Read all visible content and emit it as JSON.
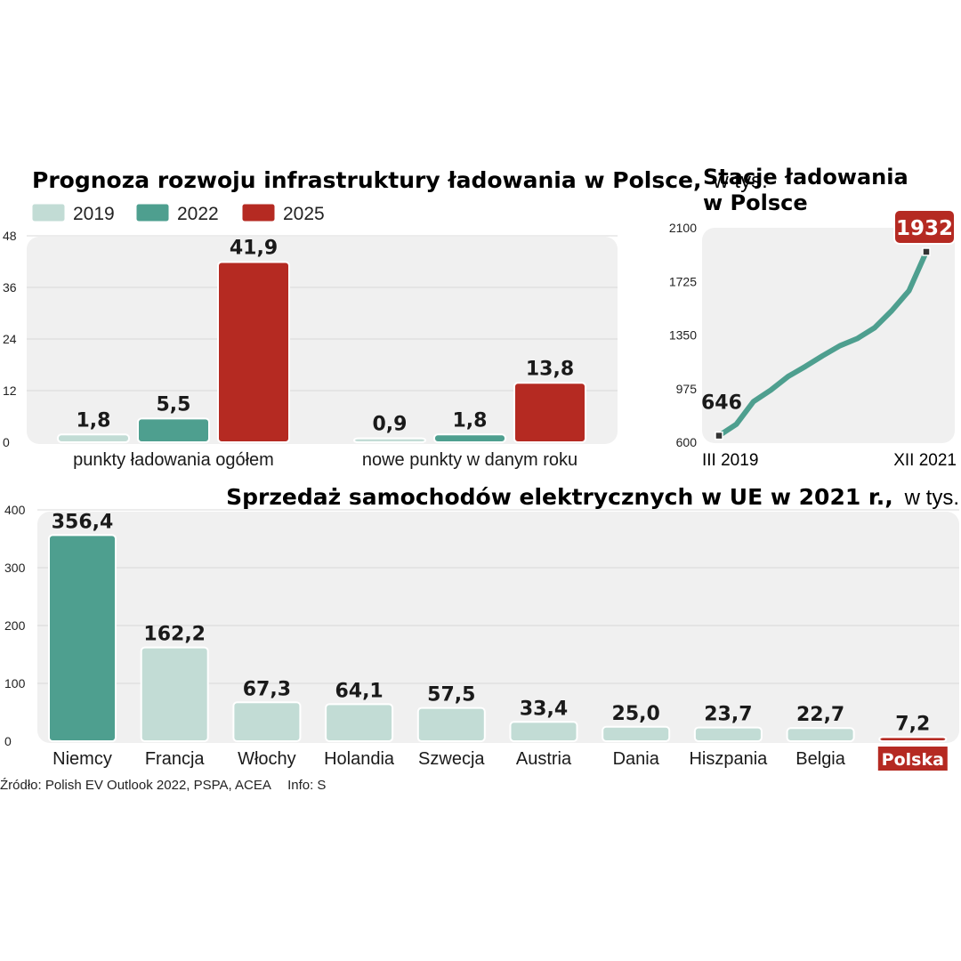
{
  "colors": {
    "y2019": "#c2dcd5",
    "y2022": "#4e9f8f",
    "y2025": "#b52a22",
    "panel": "#f0f0f0",
    "line": "#4e9f8f"
  },
  "chart_data": [
    {
      "id": "forecast",
      "type": "bar",
      "title": "Prognoza rozwoju infrastruktury ładowania w Polsce,",
      "unit_suffix": "w tys.",
      "categories": [
        "punkty ładowania ogółem",
        "nowe punkty w danym roku"
      ],
      "series": [
        {
          "name": "2019",
          "color": "#c2dcd5",
          "values": [
            1.8,
            0.9
          ],
          "labels": [
            "1,8",
            "0,9"
          ]
        },
        {
          "name": "2022",
          "color": "#4e9f8f",
          "values": [
            5.5,
            1.8
          ],
          "labels": [
            "5,5",
            "1,8"
          ]
        },
        {
          "name": "2025",
          "color": "#b52a22",
          "values": [
            41.9,
            13.8
          ],
          "labels": [
            "41,9",
            "13,8"
          ]
        }
      ],
      "yticks": [
        0,
        12,
        24,
        36,
        48
      ],
      "ylim": [
        0,
        48
      ],
      "legend": "top-left",
      "grid": true
    },
    {
      "id": "stations",
      "type": "line",
      "title_lines": [
        "Stacje ładowania",
        "w Polsce"
      ],
      "x_labels": [
        "III 2019",
        "XII 2021"
      ],
      "values": [
        646,
        725,
        885,
        965,
        1060,
        1130,
        1205,
        1275,
        1325,
        1400,
        1520,
        1660,
        1932
      ],
      "start_label": "646",
      "end_label": "1932",
      "yticks": [
        600,
        975,
        1350,
        1725,
        2100
      ],
      "ylim": [
        600,
        2100
      ],
      "grid": false
    },
    {
      "id": "sales",
      "type": "bar",
      "title": "Sprzedaż samochodów elektrycznych w UE w 2021 r.,",
      "unit_suffix": "w tys.",
      "categories": [
        "Niemcy",
        "Francja",
        "Włochy",
        "Holandia",
        "Szwecja",
        "Austria",
        "Dania",
        "Hiszpania",
        "Belgia",
        "Polska"
      ],
      "values": [
        356.4,
        162.2,
        67.3,
        64.1,
        57.5,
        33.4,
        25.0,
        23.7,
        22.7,
        7.2
      ],
      "labels": [
        "356,4",
        "162,2",
        "67,3",
        "64,1",
        "57,5",
        "33,4",
        "25,0",
        "23,7",
        "22,7",
        "7,2"
      ],
      "colors": [
        "#4e9f8f",
        "#c2dcd5",
        "#c2dcd5",
        "#c2dcd5",
        "#c2dcd5",
        "#c2dcd5",
        "#c2dcd5",
        "#c2dcd5",
        "#c2dcd5",
        "#b52a22"
      ],
      "highlight": "Polska",
      "yticks": [
        0,
        100,
        200,
        300,
        400
      ],
      "ylim": [
        0,
        400
      ],
      "grid": true
    }
  ],
  "source": {
    "text": "Źródło: Polish EV Outlook 2022, PSPA, ACEA",
    "info": "Info: S"
  }
}
